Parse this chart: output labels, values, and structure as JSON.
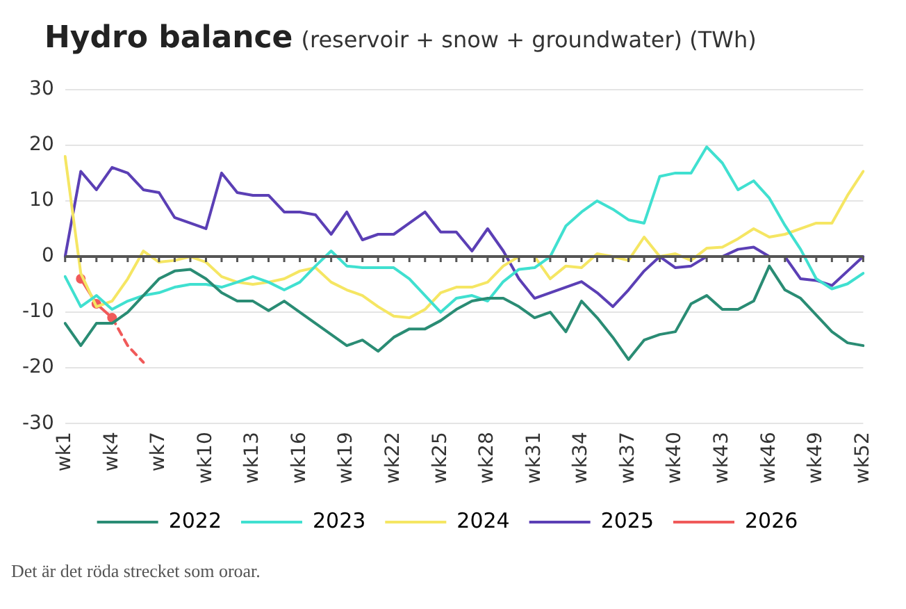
{
  "chart_data": {
    "type": "line",
    "title": "Hydro balance",
    "subtitle": "(reservoir + snow + groundwater) (TWh)",
    "categories": [
      "wk1",
      null,
      null,
      "wk4",
      null,
      null,
      "wk7",
      null,
      null,
      "wk10",
      null,
      null,
      "wk13",
      null,
      null,
      "wk16",
      null,
      null,
      "wk19",
      null,
      null,
      "wk22",
      null,
      null,
      "wk25",
      null,
      null,
      "wk28",
      null,
      null,
      "wk31",
      null,
      null,
      "wk34",
      null,
      null,
      "wk37",
      null,
      null,
      "wk40",
      null,
      null,
      "wk43",
      null,
      null,
      "wk46",
      null,
      null,
      "wk49",
      null,
      null,
      "wk52"
    ],
    "series": [
      {
        "name": "2022",
        "color": "#2a8c74",
        "values": [
          -12,
          -16,
          -12,
          -12,
          -10,
          -7,
          -4,
          -2.6,
          -2.3,
          -4,
          -6.5,
          -8,
          -8,
          -9.7,
          -8,
          -10,
          -12,
          -14,
          -16,
          -15,
          -17,
          -14.5,
          -13,
          -13,
          -11.5,
          -9.5,
          -8,
          -7.5,
          -7.5,
          -9,
          -11,
          -10,
          -13.5,
          -8,
          -11,
          -14.5,
          -18.5,
          -15,
          -14,
          -13.5,
          -8.5,
          -7,
          -9.5,
          -9.5,
          -8,
          -1.7,
          -6,
          -7.5,
          -10.5,
          -13.5,
          -15.5,
          -16
        ]
      },
      {
        "name": "2023",
        "color": "#40e0d0",
        "values": [
          -3.6,
          -9,
          -7,
          -9.5,
          -8,
          -7,
          -6.5,
          -5.5,
          -5,
          -5,
          -5.5,
          -4.6,
          -3.6,
          -4.6,
          -6,
          -4.6,
          -1.7,
          1,
          -1.7,
          -2,
          -2,
          -2,
          -4,
          -7,
          -10,
          -7.5,
          -7,
          -8,
          -4.5,
          -2.3,
          -2,
          0,
          5.5,
          8,
          10,
          8.5,
          6.6,
          6,
          14.4,
          15,
          15,
          19.7,
          16.8,
          12,
          13.6,
          10.5,
          5.6,
          1.3,
          -4,
          -5.8,
          -4.9,
          -3
        ]
      },
      {
        "name": "2024",
        "color": "#f5e663",
        "values": [
          18,
          -3,
          -9,
          -8,
          -4,
          1,
          -1,
          -0.7,
          0,
          -1,
          -3.6,
          -4.6,
          -5,
          -4.6,
          -4,
          -2.6,
          -2,
          -4.6,
          -6,
          -7,
          -9,
          -10.7,
          -11,
          -9.5,
          -6.5,
          -5.5,
          -5.5,
          -4.6,
          -1.7,
          0,
          0,
          -4,
          -1.7,
          -2,
          0.5,
          0,
          -0.7,
          3.5,
          0,
          0.5,
          -0.7,
          1.5,
          1.7,
          3.2,
          5,
          3.5,
          4,
          5,
          6,
          6,
          11,
          15.3
        ]
      },
      {
        "name": "2025",
        "color": "#5b3fb5",
        "values": [
          0,
          15.3,
          12,
          16,
          15,
          12,
          11.5,
          7,
          6,
          5,
          15,
          11.5,
          11,
          11,
          8,
          8,
          7.5,
          4,
          8,
          3,
          4,
          4,
          6,
          8,
          4.4,
          4.4,
          1,
          5,
          1,
          -4,
          -7.5,
          -6.5,
          -5.5,
          -4.5,
          -6.5,
          -9,
          -6,
          -2.6,
          0,
          -2,
          -1.7,
          0,
          0,
          1.3,
          1.7,
          0,
          0,
          -4,
          -4.3,
          -5.2,
          -2.6,
          0
        ]
      },
      {
        "name": "2026",
        "color": "#f05a5a",
        "marker": "circle",
        "values": [
          null,
          -4,
          -8.5,
          -11,
          null,
          null,
          null,
          null,
          null,
          null,
          null,
          null,
          null,
          null,
          null,
          null,
          null,
          null,
          null,
          null,
          null,
          null,
          null,
          null,
          null,
          null,
          null,
          null,
          null,
          null,
          null,
          null,
          null,
          null,
          null,
          null,
          null,
          null,
          null,
          null,
          null,
          null,
          null,
          null,
          null,
          null,
          null,
          null,
          null,
          null,
          null,
          null
        ]
      },
      {
        "color": "#f05a5a",
        "line_style": "dashed",
        "values": [
          null,
          null,
          null,
          -11,
          -16,
          -19,
          null,
          null,
          null,
          null,
          null,
          null,
          null,
          null,
          null,
          null,
          null,
          null,
          null,
          null,
          null,
          null,
          null,
          null,
          null,
          null,
          null,
          null,
          null,
          null,
          null,
          null,
          null,
          null,
          null,
          null,
          null,
          null,
          null,
          null,
          null,
          null,
          null,
          null,
          null,
          null,
          null,
          null,
          null,
          null,
          null,
          null
        ]
      }
    ],
    "ylim": [
      -30,
      30
    ],
    "yticks": [
      -30,
      -20,
      -10,
      0,
      10,
      20,
      30
    ],
    "grid": "y",
    "legend": "bottom",
    "marker": "none",
    "annotations": [
      "Det är det röda strecket som oroar."
    ]
  }
}
